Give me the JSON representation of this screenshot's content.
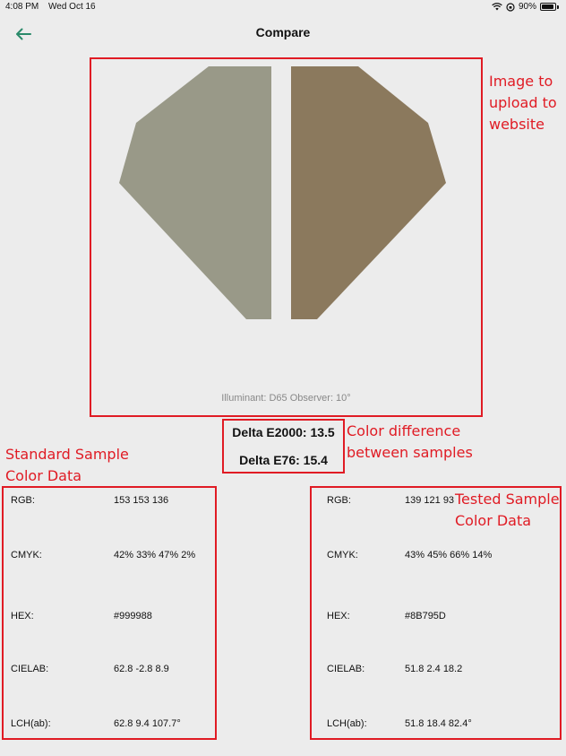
{
  "status_bar": {
    "time": "4:08 PM",
    "date": "Wed Oct 16",
    "battery": "90%"
  },
  "nav": {
    "title": "Compare"
  },
  "preview": {
    "standard_color": "#999988",
    "tested_color": "#8B795D",
    "illuminant_text": "Illuminant: D65 Observer: 10°"
  },
  "delta": {
    "e2000": "Delta E2000: 13.5",
    "e76": "Delta E76: 15.4"
  },
  "annotations": {
    "image_upload": [
      "Image to",
      "upload to",
      "website"
    ],
    "color_difference": [
      "Color difference",
      "between samples"
    ],
    "standard_sample": [
      "Standard Sample",
      "Color Data"
    ],
    "tested_sample": [
      "Tested Sample",
      "Color Data"
    ]
  },
  "standard": {
    "rgb_label": "RGB:",
    "rgb": "153 153 136",
    "cmyk_label": "CMYK:",
    "cmyk": "42% 33% 47% 2%",
    "hex_label": "HEX:",
    "hex": "#999988",
    "cielab_label": "CIELAB:",
    "cielab": "62.8 -2.8 8.9",
    "lch_label": "LCH(ab):",
    "lch": "62.8 9.4 107.7°"
  },
  "tested": {
    "rgb_label": "RGB:",
    "rgb": "139 121 93",
    "cmyk_label": "CMYK:",
    "cmyk": "43% 45% 66% 14%",
    "hex_label": "HEX:",
    "hex": "#8B795D",
    "cielab_label": "CIELAB:",
    "cielab": "51.8 2.4 18.2",
    "lch_label": "LCH(ab):",
    "lch": "51.8 18.4 82.4°"
  },
  "colors": {
    "accent": "#2a8a6a",
    "annotation_red": "#e01b24",
    "background": "#ececec"
  }
}
